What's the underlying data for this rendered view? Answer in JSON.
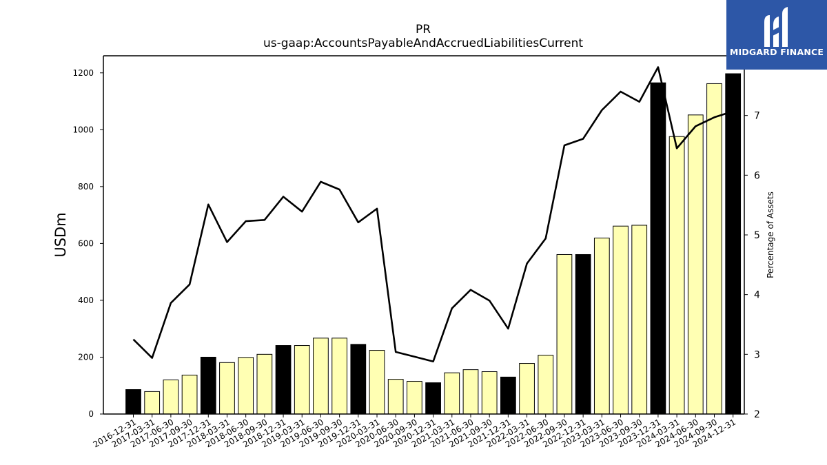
{
  "chart_data": {
    "type": "bar+line",
    "title": "PR",
    "subtitle": "us-gaap:AccountsPayableAndAccruedLiabilitiesCurrent",
    "ylabel": "USDm",
    "ylabel_right": "Percentage of Assets",
    "ylim": [
      0,
      1260
    ],
    "ylim_right": [
      2,
      8.0
    ],
    "yticks": [
      0,
      200,
      400,
      600,
      800,
      1000,
      1200
    ],
    "yticks_right": [
      2,
      3,
      4,
      5,
      6,
      7
    ],
    "categories": [
      "2016-12-31",
      "2017-03-31",
      "2017-06-30",
      "2017-09-30",
      "2017-12-31",
      "2018-03-31",
      "2018-06-30",
      "2018-09-30",
      "2018-12-31",
      "2019-03-31",
      "2019-06-30",
      "2019-09-30",
      "2019-12-31",
      "2020-03-31",
      "2020-06-30",
      "2020-09-30",
      "2020-12-31",
      "2021-03-31",
      "2021-06-30",
      "2021-09-30",
      "2021-12-31",
      "2022-03-31",
      "2022-06-30",
      "2022-09-30",
      "2022-12-31",
      "2023-03-31",
      "2023-06-30",
      "2023-09-30",
      "2023-12-31",
      "2024-03-31",
      "2024-06-30",
      "2024-09-30",
      "2024-12-31"
    ],
    "series": [
      {
        "kind": "bar",
        "axis": "left",
        "values": [
          86,
          79,
          120,
          137,
          200,
          181,
          199,
          210,
          241,
          241,
          267,
          267,
          245,
          224,
          122,
          115,
          110,
          145,
          156,
          149,
          130,
          178,
          207,
          561,
          561,
          619,
          661,
          664,
          1165,
          976,
          1052,
          1162,
          1197
        ],
        "highlight": [
          true,
          false,
          false,
          false,
          true,
          false,
          false,
          false,
          true,
          false,
          false,
          false,
          true,
          false,
          false,
          false,
          true,
          false,
          false,
          false,
          true,
          false,
          false,
          false,
          true,
          false,
          false,
          false,
          true,
          false,
          false,
          false,
          true
        ]
      },
      {
        "kind": "line",
        "axis": "right",
        "values": [
          3.25,
          2.94,
          3.86,
          4.17,
          5.51,
          4.88,
          5.23,
          5.25,
          5.64,
          5.39,
          5.89,
          5.76,
          5.21,
          5.44,
          3.04,
          2.96,
          2.88,
          3.77,
          4.08,
          3.9,
          3.43,
          4.52,
          4.94,
          6.5,
          6.61,
          7.09,
          7.4,
          7.23,
          7.81,
          6.45,
          6.82,
          6.97,
          7.07
        ]
      }
    ],
    "colors": {
      "bar_fill": "#ffffb3",
      "bar_highlight": "#000000",
      "bar_edge": "#000000",
      "line": "#000000"
    }
  },
  "logo": {
    "text": "MIDGARD FINANCE",
    "background": "#2d57a7"
  }
}
